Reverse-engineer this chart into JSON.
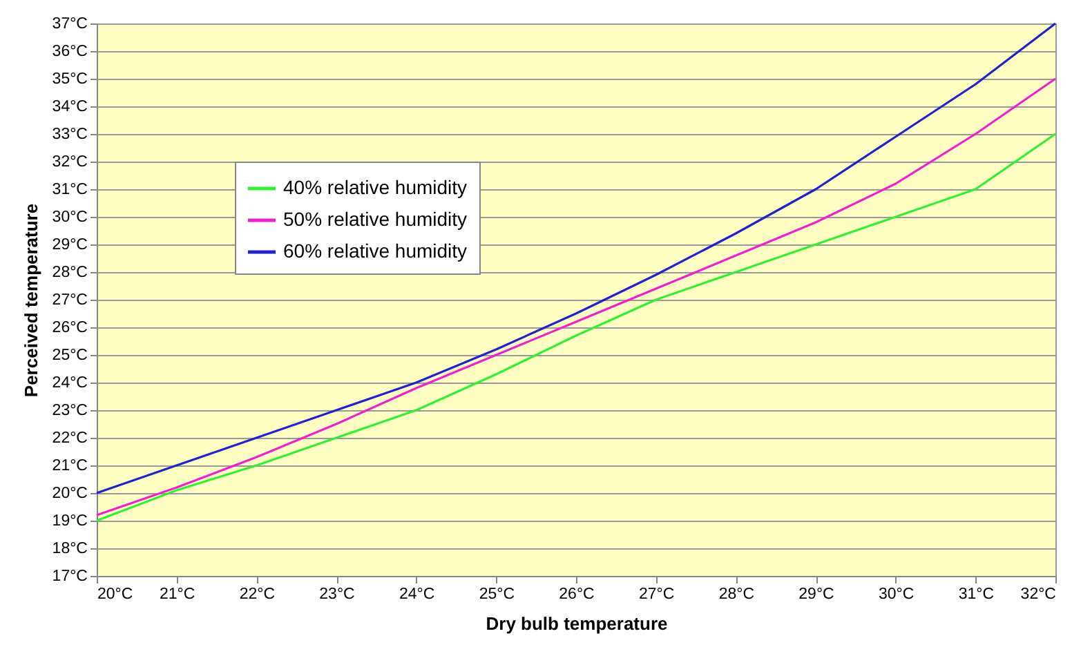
{
  "chart_data": {
    "type": "line",
    "xlabel": "Dry bulb temperature",
    "ylabel": "Perceived temperature",
    "x": [
      20,
      21,
      22,
      23,
      24,
      25,
      26,
      27,
      28,
      29,
      30,
      31,
      32
    ],
    "series": [
      {
        "name": "40% relative humidity",
        "color": "#33ee33",
        "values": [
          19,
          20.1,
          21,
          22,
          23,
          24.3,
          25.7,
          27,
          28,
          29,
          30,
          31,
          33
        ]
      },
      {
        "name": "50% relative humidity",
        "color": "#ee22cc",
        "values": [
          19.2,
          20.2,
          21.3,
          22.5,
          23.8,
          25,
          26.2,
          27.4,
          28.6,
          29.8,
          31.2,
          33,
          35
        ]
      },
      {
        "name": "60% relative humidity",
        "color": "#2222cc",
        "values": [
          20,
          21,
          22,
          23,
          24,
          25.2,
          26.5,
          27.9,
          29.4,
          31,
          32.9,
          34.8,
          37
        ]
      }
    ],
    "xlim": [
      20,
      32
    ],
    "xticks": [
      {
        "value": 20,
        "label": "20°C"
      },
      {
        "value": 21,
        "label": "21°C"
      },
      {
        "value": 22,
        "label": "22°C"
      },
      {
        "value": 23,
        "label": "23°C"
      },
      {
        "value": 24,
        "label": "24°C"
      },
      {
        "value": 25,
        "label": "25°C"
      },
      {
        "value": 26,
        "label": "26°C"
      },
      {
        "value": 27,
        "label": "27°C"
      },
      {
        "value": 28,
        "label": "28°C"
      },
      {
        "value": 29,
        "label": "29°C"
      },
      {
        "value": 30,
        "label": "30°C"
      },
      {
        "value": 31,
        "label": "31°C"
      },
      {
        "value": 32,
        "label": "32°C"
      }
    ],
    "ylim": [
      17,
      37
    ],
    "yticks": [
      {
        "value": 17,
        "label": "17°C"
      },
      {
        "value": 18,
        "label": "18°C"
      },
      {
        "value": 19,
        "label": "19°C"
      },
      {
        "value": 20,
        "label": "20°C"
      },
      {
        "value": 21,
        "label": "21°C"
      },
      {
        "value": 22,
        "label": "22°C"
      },
      {
        "value": 23,
        "label": "23°C"
      },
      {
        "value": 24,
        "label": "24°C"
      },
      {
        "value": 25,
        "label": "25°C"
      },
      {
        "value": 26,
        "label": "26°C"
      },
      {
        "value": 27,
        "label": "27°C"
      },
      {
        "value": 28,
        "label": "28°C"
      },
      {
        "value": 29,
        "label": "29°C"
      },
      {
        "value": 30,
        "label": "30°C"
      },
      {
        "value": 31,
        "label": "31°C"
      },
      {
        "value": 32,
        "label": "32°C"
      },
      {
        "value": 33,
        "label": "33°C"
      },
      {
        "value": 34,
        "label": "34°C"
      },
      {
        "value": 35,
        "label": "35°C"
      },
      {
        "value": 36,
        "label": "36°C"
      },
      {
        "value": 37,
        "label": "37°C"
      }
    ],
    "grid": "y",
    "legend": "top left",
    "marker": "none",
    "line_style": "solid"
  }
}
